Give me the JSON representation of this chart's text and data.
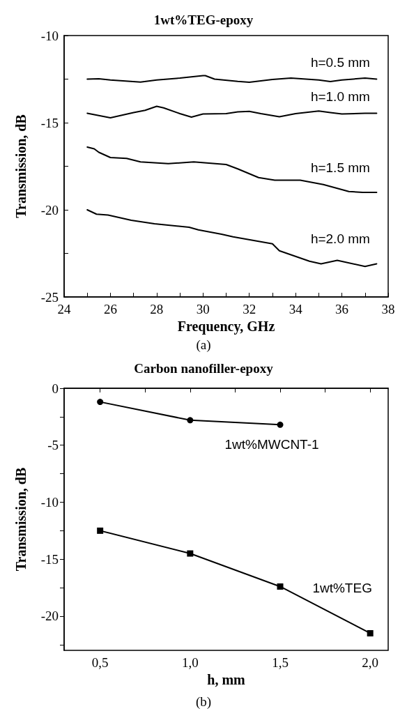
{
  "chart_data": [
    {
      "type": "line",
      "title": "1wt%TEG-epoxy",
      "xlabel": "Frequency, GHz",
      "ylabel": "Transmission, dB",
      "marker": "none",
      "line_style": "solid",
      "xlim": [
        24,
        38
      ],
      "xticks": [
        24,
        {
          "value": 25,
          "label": null
        },
        26,
        {
          "value": 27,
          "label": null
        },
        28,
        {
          "value": 29,
          "label": null
        },
        30,
        {
          "value": 31,
          "label": null
        },
        32,
        {
          "value": 33,
          "label": null
        },
        34,
        {
          "value": 35,
          "label": null
        },
        36,
        {
          "value": 37,
          "label": null
        },
        38
      ],
      "ylim": [
        -25,
        -10
      ],
      "yticks": [
        -25,
        {
          "value": -22.5,
          "label": null
        },
        -20,
        {
          "value": -17.5,
          "label": null
        },
        -15,
        {
          "value": -12.5,
          "label": null
        },
        -10
      ],
      "series": [
        {
          "name": "h=0.5 mm",
          "color": "#000000",
          "x": [
            25,
            25.5,
            26,
            27.3,
            28,
            29,
            30,
            30.1,
            30.5,
            31.5,
            32,
            33,
            33.8,
            35,
            35.5,
            36,
            37,
            37.5
          ],
          "values": [
            -12.5,
            -12.48,
            -12.55,
            -12.67,
            -12.55,
            -12.44,
            -12.3,
            -12.3,
            -12.5,
            -12.63,
            -12.68,
            -12.52,
            -12.44,
            -12.55,
            -12.64,
            -12.55,
            -12.44,
            -12.5
          ]
        },
        {
          "name": "h=1.0 mm",
          "color": "#000000",
          "x": [
            25,
            26,
            27,
            27.5,
            28,
            28.3,
            29,
            29.5,
            30,
            31,
            31.5,
            32,
            32.5,
            33.3,
            34,
            35,
            35.5,
            36,
            37,
            37.5
          ],
          "values": [
            -14.46,
            -14.72,
            -14.42,
            -14.29,
            -14.06,
            -14.15,
            -14.48,
            -14.68,
            -14.5,
            -14.48,
            -14.38,
            -14.35,
            -14.48,
            -14.66,
            -14.48,
            -14.33,
            -14.42,
            -14.5,
            -14.46,
            -14.46
          ]
        },
        {
          "name": "h=1.5 mm",
          "color": "#000000",
          "x": [
            25,
            25.3,
            25.5,
            26,
            26.7,
            27.3,
            28.5,
            29.6,
            31,
            31.5,
            32.4,
            33.1,
            34.2,
            35.2,
            36.3,
            36.9,
            37.5
          ],
          "values": [
            -16.4,
            -16.5,
            -16.7,
            -17.0,
            -17.05,
            -17.25,
            -17.35,
            -17.25,
            -17.4,
            -17.65,
            -18.15,
            -18.3,
            -18.3,
            -18.55,
            -18.95,
            -19.0,
            -19.0
          ]
        },
        {
          "name": "h=2.0 mm",
          "color": "#000000",
          "x": [
            25,
            25.4,
            25.9,
            26.9,
            27.9,
            29.4,
            29.8,
            30.8,
            31.3,
            33.0,
            33.3,
            34.6,
            35.1,
            35.8,
            37.0,
            37.5
          ],
          "values": [
            -20.0,
            -20.25,
            -20.3,
            -20.6,
            -20.8,
            -21.0,
            -21.15,
            -21.4,
            -21.55,
            -21.95,
            -22.35,
            -22.95,
            -23.1,
            -22.9,
            -23.25,
            -23.1
          ]
        }
      ],
      "annotations": [
        "(a)"
      ]
    },
    {
      "type": "line",
      "title": "Carbon nanofiller-epoxy",
      "xlabel": "h, mm",
      "ylabel": "Transmission, dB",
      "line_style": "solid",
      "xlim": [
        0.3,
        2.1
      ],
      "xticks": [
        {
          "value": 0.5,
          "label": "0,5"
        },
        {
          "value": 0.75,
          "label": null
        },
        {
          "value": 1.0,
          "label": "1,0"
        },
        {
          "value": 1.25,
          "label": null
        },
        {
          "value": 1.5,
          "label": "1,5"
        },
        {
          "value": 1.75,
          "label": null
        },
        {
          "value": 2.0,
          "label": "2,0"
        }
      ],
      "ylim": [
        -23,
        0
      ],
      "yticks": [
        {
          "value": -22.5,
          "label": null
        },
        -20,
        {
          "value": -17.5,
          "label": null
        },
        -15,
        {
          "value": -12.5,
          "label": null
        },
        -10,
        {
          "value": -7.5,
          "label": null
        },
        -5,
        {
          "value": -2.5,
          "label": null
        },
        0
      ],
      "series": [
        {
          "name": "1wt%MWCNT-1",
          "color": "#000000",
          "marker": "circle",
          "x": [
            0.5,
            1.0,
            1.5
          ],
          "values": [
            -1.2,
            -2.8,
            -3.2
          ]
        },
        {
          "name": "1wt%TEG",
          "color": "#000000",
          "marker": "square",
          "x": [
            0.5,
            1.0,
            1.5,
            2.0
          ],
          "values": [
            -12.5,
            -14.5,
            -17.4,
            -21.5
          ]
        }
      ],
      "annotations": [
        "(b)"
      ]
    }
  ]
}
